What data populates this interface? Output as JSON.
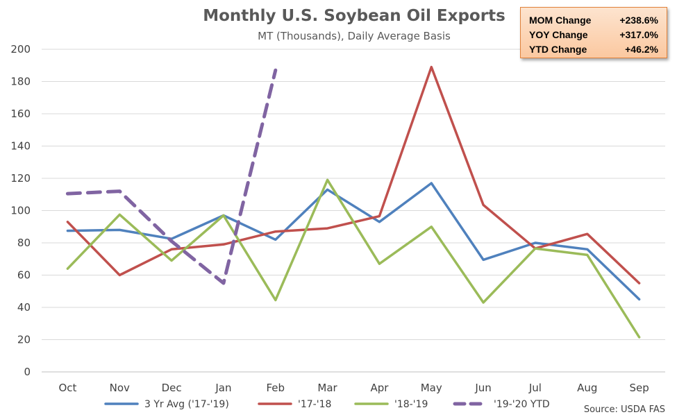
{
  "chart_data": {
    "type": "line",
    "title": "Monthly U.S. Soybean Oil Exports",
    "subtitle": "MT (Thousands), Daily Average Basis",
    "categories": [
      "Oct",
      "Nov",
      "Dec",
      "Jan",
      "Feb",
      "Mar",
      "Apr",
      "May",
      "Jun",
      "Jul",
      "Aug",
      "Sep"
    ],
    "yticks": [
      "0",
      "20",
      "40",
      "60",
      "80",
      "100",
      "120",
      "140",
      "160",
      "180",
      "200"
    ],
    "ylim": [
      0,
      200
    ],
    "grid": true,
    "legend_position": "bottom",
    "series": [
      {
        "name": "3 Yr Avg ('17-'19)",
        "color": "#4F81BD",
        "dashed": false,
        "values": [
          87.5,
          88,
          82.5,
          97,
          82,
          113,
          93,
          117,
          69.5,
          80,
          76,
          45
        ]
      },
      {
        "name": "'17-'18",
        "color": "#C0504D",
        "dashed": false,
        "values": [
          93,
          60,
          76,
          79,
          87,
          89,
          96.5,
          189,
          103.5,
          76.5,
          85.5,
          55
        ]
      },
      {
        "name": "'18-'19",
        "color": "#9BBB59",
        "dashed": false,
        "values": [
          64,
          97.5,
          69,
          97,
          44.5,
          119,
          67,
          90,
          43,
          76.5,
          72.5,
          21.5
        ]
      },
      {
        "name": "'19-'20 YTD",
        "color": "#8064A2",
        "dashed": true,
        "values": [
          110.5,
          112,
          81,
          55,
          187,
          null,
          null,
          null,
          null,
          null,
          null,
          null
        ]
      }
    ],
    "annotations": {
      "stats": [
        {
          "label": "MOM Change",
          "value": "+238.6%"
        },
        {
          "label": "YOY Change",
          "value": "+317.0%"
        },
        {
          "label": "YTD Change",
          "value": "+46.2%"
        }
      ],
      "source": "Source: USDA FAS"
    }
  }
}
